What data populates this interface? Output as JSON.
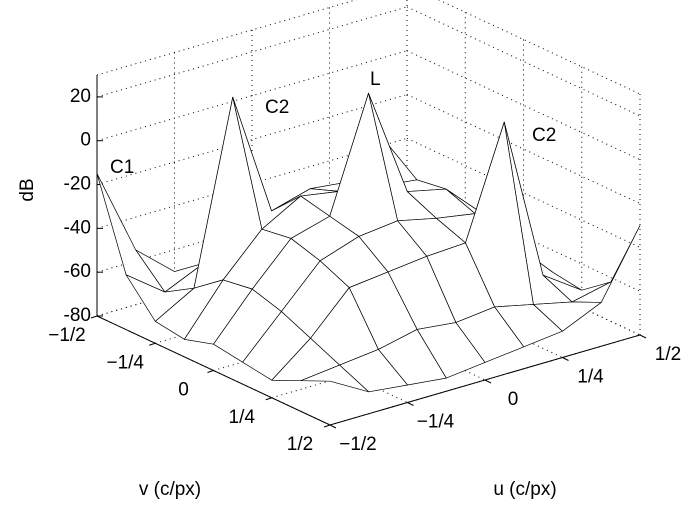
{
  "chart_data": {
    "type": "surface",
    "xlabel": "u (c/px)",
    "ylabel": "v (c/px)",
    "zlabel": "dB",
    "x": [
      -0.5,
      -0.375,
      -0.25,
      -0.125,
      0,
      0.125,
      0.25,
      0.375,
      0.5
    ],
    "y": [
      -0.5,
      -0.375,
      -0.25,
      -0.125,
      0,
      0.125,
      0.25,
      0.375,
      0.5
    ],
    "z": [
      [
        -15,
        -55,
        -70,
        -72,
        -68,
        -70,
        -72,
        -65,
        -60
      ],
      [
        -55,
        -68,
        -60,
        -50,
        -45,
        -48,
        -55,
        -62,
        -66
      ],
      [
        -70,
        -60,
        22,
        -35,
        -30,
        -32,
        -20,
        -55,
        -70
      ],
      [
        -72,
        -50,
        -32,
        -22,
        -25,
        -28,
        -30,
        -50,
        -72
      ],
      [
        -68,
        -48,
        -30,
        -25,
        26,
        -24,
        -28,
        -45,
        -68
      ],
      [
        -70,
        -52,
        -34,
        -28,
        -26,
        -30,
        -33,
        -52,
        -70
      ],
      [
        -72,
        -58,
        -40,
        -38,
        -36,
        -35,
        15,
        -60,
        -72
      ],
      [
        -66,
        -64,
        -62,
        -58,
        -60,
        -58,
        -62,
        -66,
        -62
      ],
      [
        -60,
        -70,
        -72,
        -74,
        -72,
        -70,
        -68,
        -60,
        -30
      ]
    ],
    "xlim": [
      -0.5,
      0.5
    ],
    "ylim": [
      -0.5,
      0.5
    ],
    "zlim": [
      -80,
      30
    ],
    "xticks": [
      {
        "value": -0.5,
        "label": "−1/2"
      },
      {
        "value": -0.25,
        "label": "−1/4"
      },
      0,
      {
        "value": 0.25,
        "label": "1/4"
      },
      {
        "value": 0.5,
        "label": "1/2"
      }
    ],
    "yticks": [
      {
        "value": -0.5,
        "label": "−1/2"
      },
      {
        "value": -0.25,
        "label": "−1/4"
      },
      0,
      {
        "value": 0.25,
        "label": "1/4"
      },
      {
        "value": 0.5,
        "label": "1/2"
      }
    ],
    "zticks": [
      -80,
      -60,
      -40,
      -20,
      0,
      20
    ],
    "grid": true,
    "annotations": [
      "C1",
      "C2",
      "L",
      "C2"
    ]
  }
}
